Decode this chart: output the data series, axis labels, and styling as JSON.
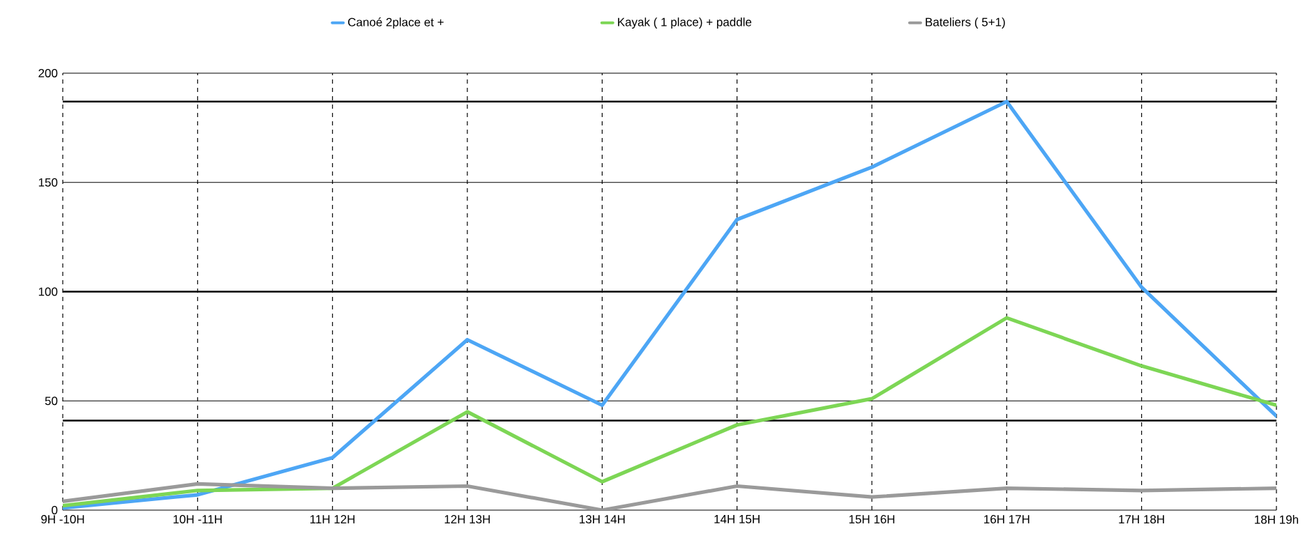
{
  "chart_data": {
    "type": "line",
    "categories": [
      "9H -10H",
      "10H -11H",
      "11H 12H",
      "12H 13H",
      "13H 14H",
      "14H 15H",
      "15H 16H",
      "16H 17H",
      "17H 18H",
      "18H 19h"
    ],
    "series": [
      {
        "name": "Canoé 2place et +",
        "color": "#4da6f5",
        "values": [
          1,
          7,
          24,
          78,
          48,
          133,
          157,
          187,
          102,
          43
        ]
      },
      {
        "name": "Kayak ( 1 place) + paddle",
        "color": "#7dd655",
        "values": [
          2,
          9,
          10,
          45,
          13,
          39,
          51,
          88,
          66,
          48
        ]
      },
      {
        "name": "Bateliers ( 5+1)",
        "color": "#9a9a9a",
        "values": [
          4,
          12,
          10,
          11,
          0,
          11,
          6,
          10,
          9,
          10
        ]
      }
    ],
    "ylim": [
      0,
      200
    ],
    "yticks": [
      0,
      50,
      100,
      150,
      200
    ],
    "grid": true,
    "legend": "top",
    "marker": "none",
    "line_style": "solid",
    "ref_lines": [
      {
        "axis": "y",
        "value": 187,
        "color": "#000000"
      },
      {
        "axis": "y",
        "value": 100,
        "color": "#000000"
      },
      {
        "axis": "y",
        "value": 41,
        "color": "#000000"
      }
    ]
  }
}
